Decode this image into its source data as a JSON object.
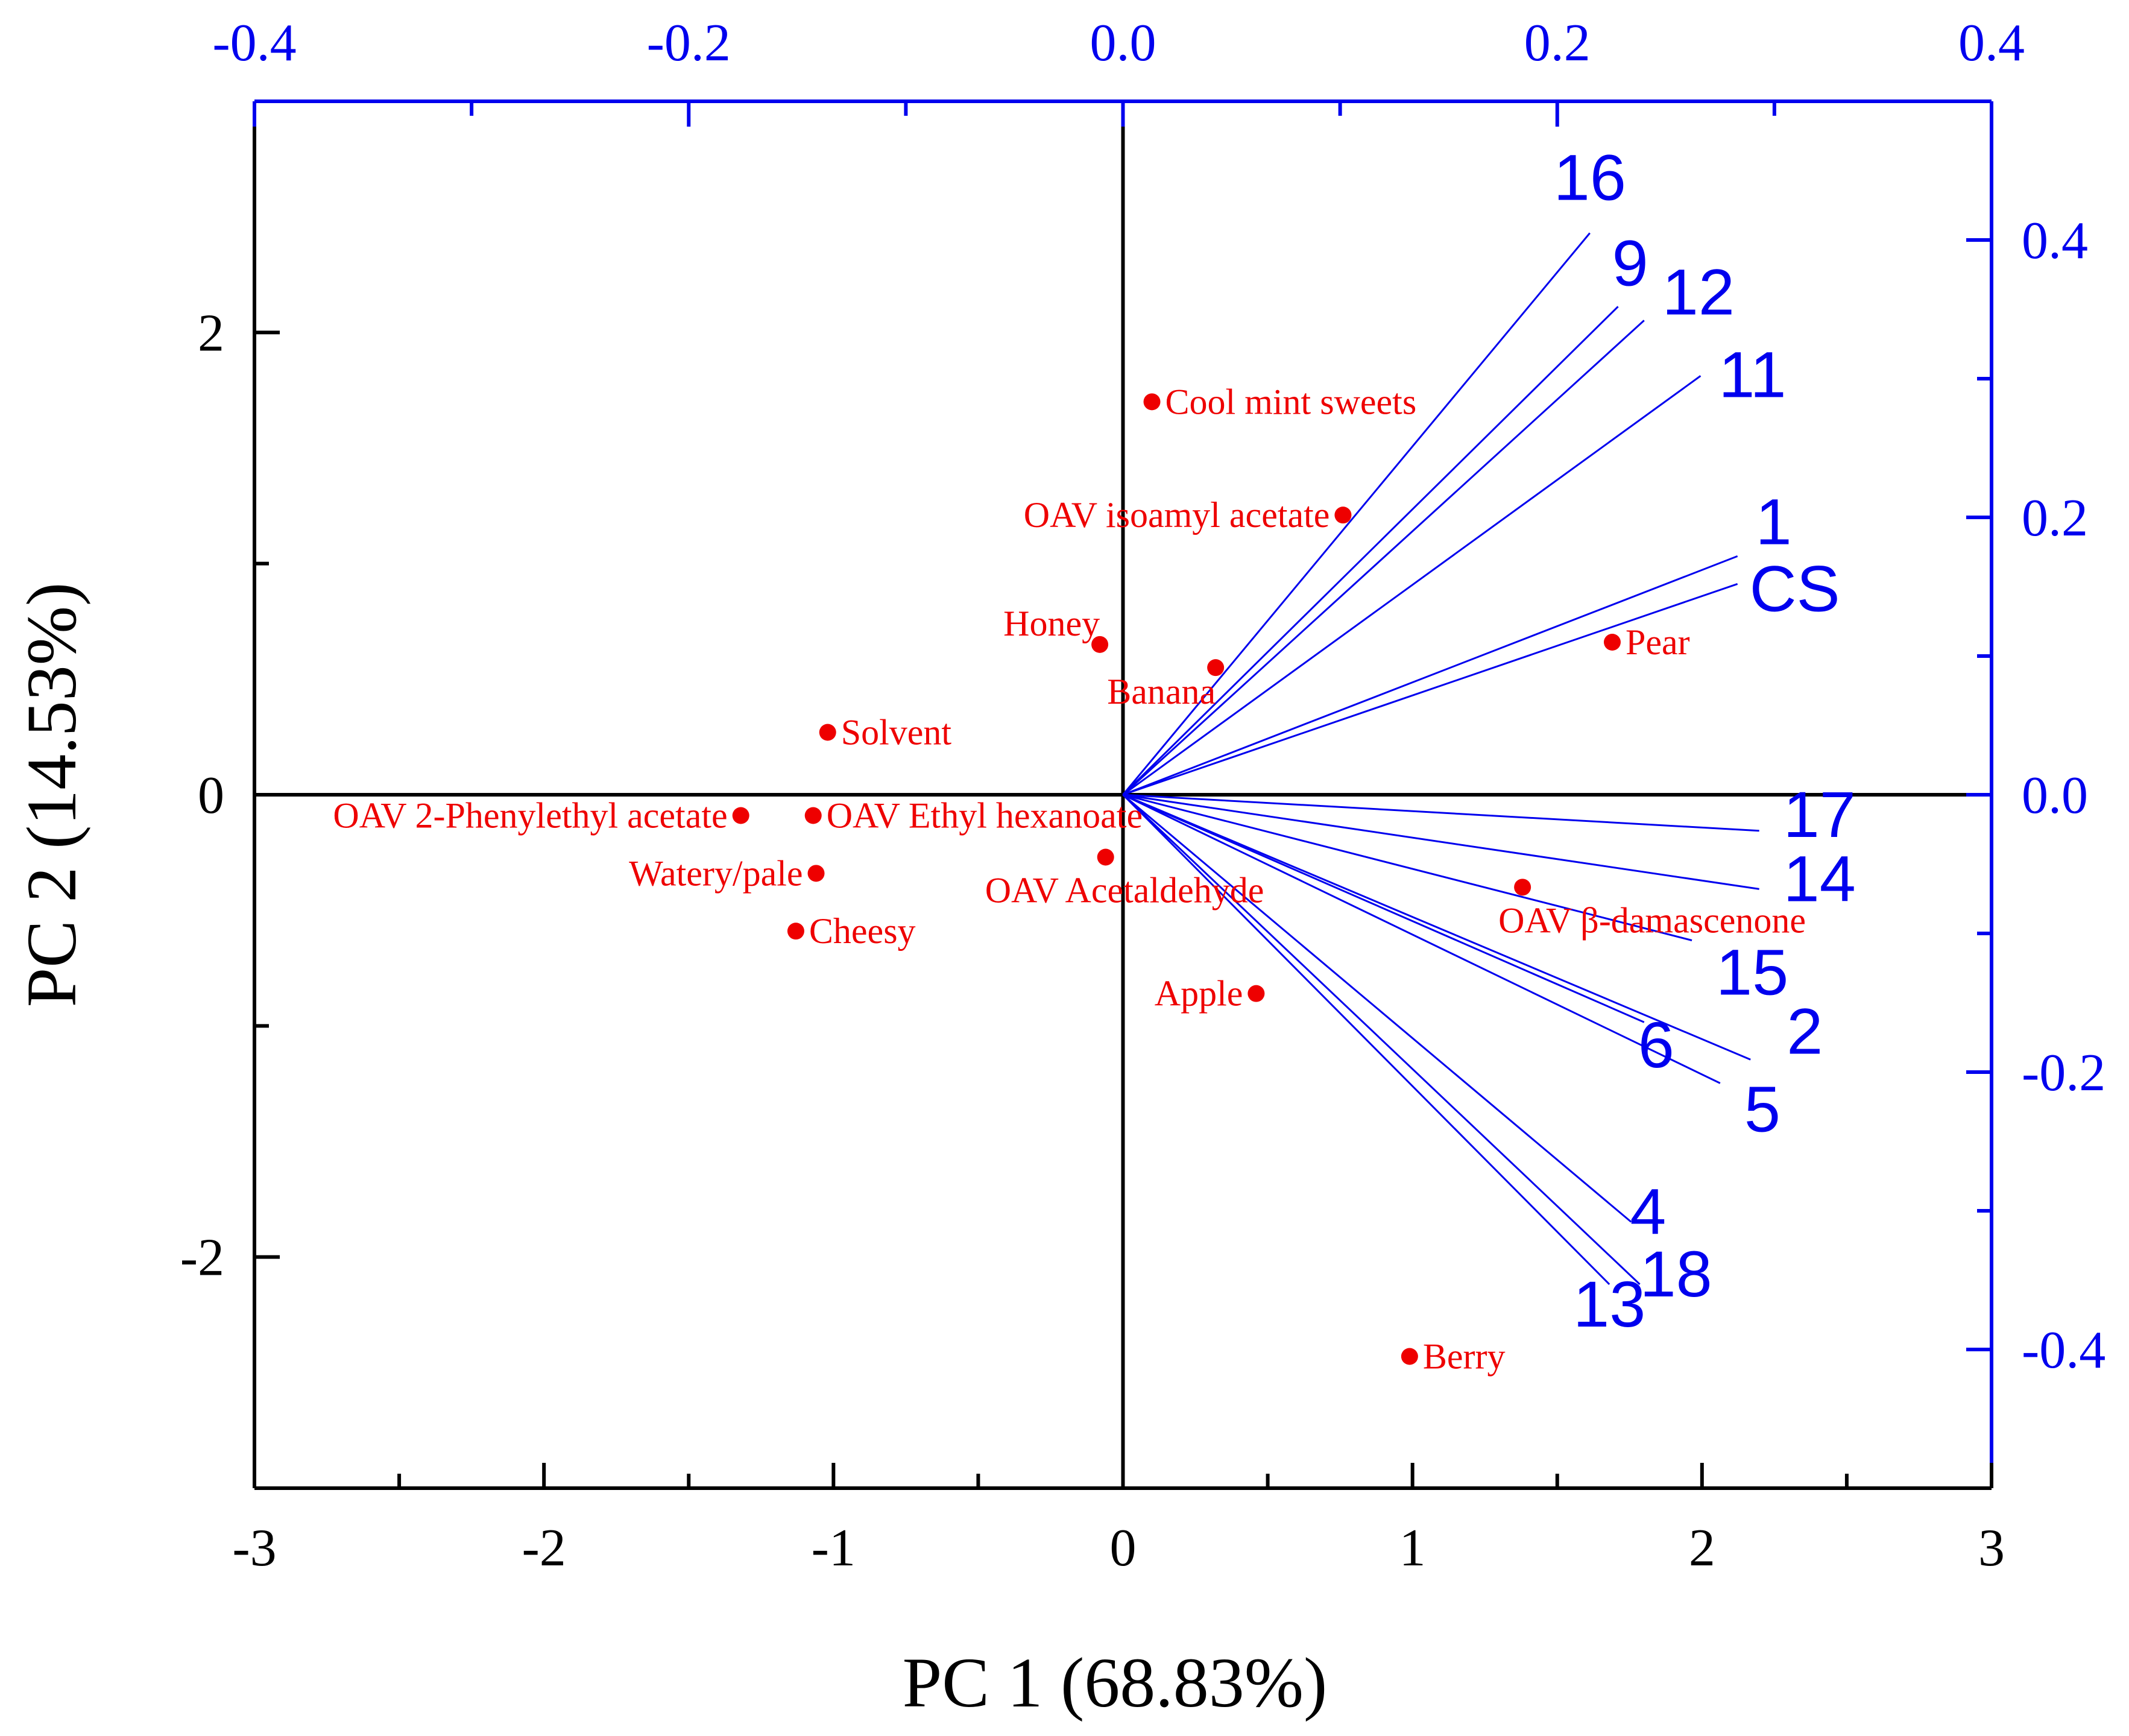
{
  "chart_data": {
    "type": "scatter",
    "subtype": "pca-biplot",
    "xlabel": "PC 1 (68.83%)",
    "ylabel": "PC 2 (14.53%)",
    "xlim": [
      -3,
      3
    ],
    "ylim": [
      -3,
      3
    ],
    "xticks": [
      "-3",
      "-2",
      "-1",
      "0",
      "1",
      "2",
      "3"
    ],
    "yticks": [
      "-2",
      "0",
      "2"
    ],
    "loading_xlim": [
      -0.4,
      0.4
    ],
    "loading_ylim": [
      -0.5,
      0.5
    ],
    "loading_xticks": [
      "-0.4",
      "-0.2",
      "0.0",
      "0.2",
      "0.4"
    ],
    "loading_yticks": [
      "-0.4",
      "-0.2",
      "0.0",
      "0.2",
      "0.4"
    ],
    "scores": [
      {
        "name": "Cool mint sweets",
        "x": 0.1,
        "y": 1.7,
        "anchor": "right"
      },
      {
        "name": "OAV isoamyl acetate",
        "x": 0.76,
        "y": 1.21,
        "anchor": "left"
      },
      {
        "name": "Honey",
        "x": -0.08,
        "y": 0.65,
        "anchor": "left-up"
      },
      {
        "name": "Banana",
        "x": 0.32,
        "y": 0.55,
        "anchor": "left-down"
      },
      {
        "name": "Pear",
        "x": 1.69,
        "y": 0.66,
        "anchor": "right"
      },
      {
        "name": "Solvent",
        "x": -1.02,
        "y": 0.27,
        "anchor": "right"
      },
      {
        "name": "OAV 2-Phenylethyl acetate",
        "x": -1.32,
        "y": -0.09,
        "anchor": "left"
      },
      {
        "name": "OAV Ethyl hexanoate",
        "x": -1.07,
        "y": -0.09,
        "anchor": "right"
      },
      {
        "name": "Watery/pale",
        "x": -1.06,
        "y": -0.34,
        "anchor": "left"
      },
      {
        "name": "OAV Acetaldehyde",
        "x": -0.06,
        "y": -0.27,
        "anchor": "below"
      },
      {
        "name": "Cheesy",
        "x": -1.13,
        "y": -0.59,
        "anchor": "right"
      },
      {
        "name": "OAV β-damascenone",
        "x": 1.38,
        "y": -0.4,
        "anchor": "below-right"
      },
      {
        "name": "Apple",
        "x": 0.46,
        "y": -0.86,
        "anchor": "left"
      },
      {
        "name": "Berry",
        "x": 0.99,
        "y": -2.43,
        "anchor": "right"
      }
    ],
    "loadings": [
      {
        "name": "16",
        "x": 0.215,
        "y": 0.405
      },
      {
        "name": "9",
        "x": 0.228,
        "y": 0.352
      },
      {
        "name": "12",
        "x": 0.24,
        "y": 0.342
      },
      {
        "name": "11",
        "x": 0.266,
        "y": 0.302
      },
      {
        "name": "1",
        "x": 0.283,
        "y": 0.172
      },
      {
        "name": "CS",
        "x": 0.283,
        "y": 0.152
      },
      {
        "name": "17",
        "x": 0.293,
        "y": -0.026
      },
      {
        "name": "14",
        "x": 0.293,
        "y": -0.068
      },
      {
        "name": "15",
        "x": 0.262,
        "y": -0.105
      },
      {
        "name": "6",
        "x": 0.24,
        "y": -0.164
      },
      {
        "name": "2",
        "x": 0.289,
        "y": -0.191
      },
      {
        "name": "5",
        "x": 0.275,
        "y": -0.208
      },
      {
        "name": "4",
        "x": 0.234,
        "y": -0.308
      },
      {
        "name": "18",
        "x": 0.238,
        "y": -0.353
      },
      {
        "name": "13",
        "x": 0.224,
        "y": -0.353
      }
    ]
  },
  "colors": {
    "axis": "#000000",
    "loading": "#0000ee",
    "score": "#ee0000"
  }
}
